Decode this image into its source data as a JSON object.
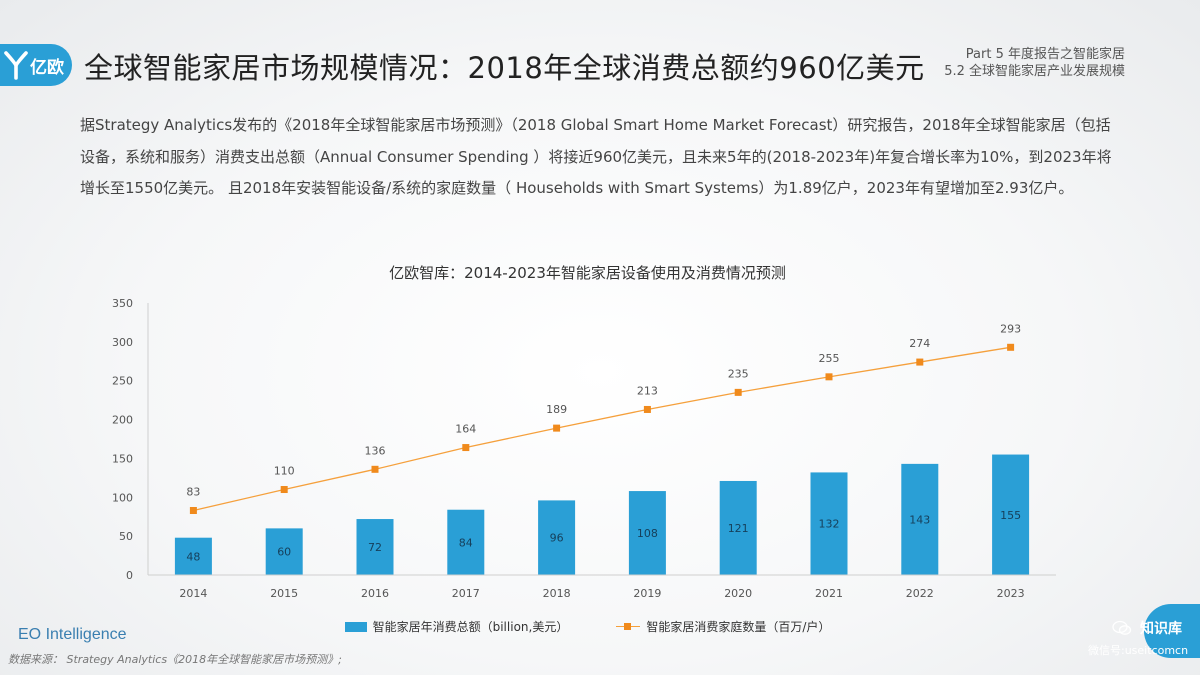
{
  "header": {
    "logo_text": "亿欧",
    "title": "全球智能家居市场规模情况：2018年全球消费总额约960亿美元",
    "part_line1": "Part 5 年度报告之智能家居",
    "part_line2": "5.2 全球智能家居产业发展规模"
  },
  "intro": "据Strategy Analytics发布的《2018年全球智能家居市场预测》（2018 Global Smart Home Market Forecast）研究报告，2018年全球智能家居（包括设备，系统和服务）消费支出总额（Annual Consumer Spending ）将接近960亿美元，且未来5年的(2018-2023年)年复合增长率为10%，到2023年将增长至1550亿美元。 且2018年安装智能设备/系统的家庭数量（ Households with Smart Systems）为1.89亿户，2023年有望增加至2.93亿户。",
  "footer": {
    "brand": "EO Intelligence",
    "source": "数据来源： Strategy Analytics《2018年全球智能家居市场预测》;",
    "wm_title": "知识库",
    "wm_sub": "微信号:useitcomcn"
  },
  "colors": {
    "bar": "#2a9fd6",
    "line": "#f5a03c",
    "marker": "#f08a1c",
    "accent": "#2a9fd6"
  },
  "chart_data": {
    "type": "bar",
    "title": "亿欧智库：2014-2023年智能家居设备使用及消费情况预测",
    "categories": [
      "2014",
      "2015",
      "2016",
      "2017",
      "2018",
      "2019",
      "2020",
      "2021",
      "2022",
      "2023"
    ],
    "ylim": [
      0,
      350
    ],
    "yticks": [
      0,
      50,
      100,
      150,
      200,
      250,
      300,
      350
    ],
    "grid": false,
    "legend_position": "bottom",
    "series": [
      {
        "name": "智能家居年消费总额（billion,美元）",
        "type": "bar",
        "values": [
          48,
          60,
          72,
          84,
          96,
          108,
          121,
          132,
          143,
          155
        ]
      },
      {
        "name": "智能家居消费家庭数量（百万/户）",
        "type": "line",
        "values": [
          83,
          110,
          136,
          164,
          189,
          213,
          235,
          255,
          274,
          293
        ]
      }
    ]
  }
}
